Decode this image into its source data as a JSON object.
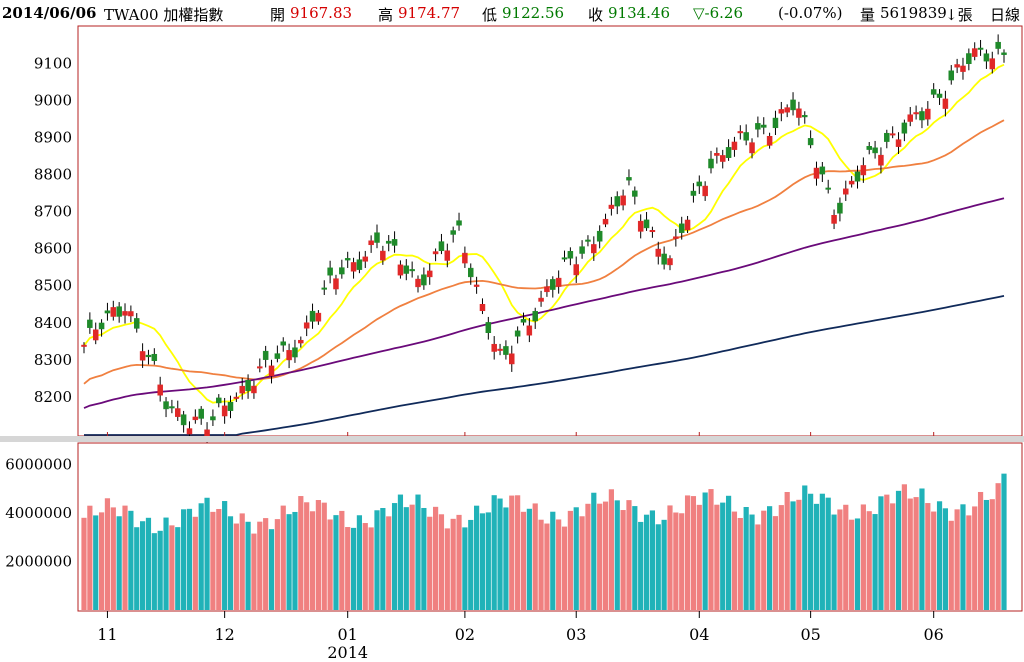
{
  "header": {
    "date": "2014/06/06",
    "symbol": "TWA00 加權指數",
    "open_label": "開",
    "open_value": "9167.83",
    "high_label": "高",
    "high_value": "9174.77",
    "low_label": "低",
    "low_value": "9122.56",
    "close_label": "收",
    "close_value": "9134.46",
    "change": "▽-6.26",
    "change_pct": "(-0.07%)",
    "volume_label": "量",
    "volume_value": "5619839",
    "volume_unit": "↓張",
    "period": "日線"
  },
  "colors": {
    "border": "#b52020",
    "up_candle": "#e02828",
    "down_candle": "#1f8a2a",
    "vol_up": "#f08080",
    "vol_down": "#20b2b8",
    "ma_yellow": "#ffff00",
    "ma_orange": "#f08040",
    "ma_purple": "#6a0a7a",
    "ma_navy": "#102a5a"
  },
  "chart_data": [
    {
      "type": "candlestick",
      "title": "TWA00 加權指數 日線",
      "ylim": [
        8100,
        9190
      ],
      "yticks": [
        8200,
        8300,
        8400,
        8500,
        8600,
        8700,
        8800,
        8900,
        9000,
        9100
      ],
      "xticks": [
        "11",
        "12",
        "01",
        "02",
        "03",
        "04",
        "05",
        "06"
      ],
      "xtick_sublabel": "2014",
      "approx_close_path": [
        {
          "label": "2013/10 end",
          "close": 8340
        },
        {
          "label": "2013/11 start",
          "close": 8460
        },
        {
          "label": "2013/11 mid",
          "close": 8170
        },
        {
          "label": "2013/11 low",
          "close": 8120
        },
        {
          "label": "2013/12 start",
          "close": 8250
        },
        {
          "label": "2013/12 mid",
          "close": 8330
        },
        {
          "label": "2013/12 end",
          "close": 8520
        },
        {
          "label": "2014/01 start",
          "close": 8620
        },
        {
          "label": "2014/01 mid",
          "close": 8520
        },
        {
          "label": "2014/01 high",
          "close": 8640
        },
        {
          "label": "2014/02 start",
          "close": 8280
        },
        {
          "label": "2014/02 mid",
          "close": 8480
        },
        {
          "label": "2014/03 start",
          "close": 8600
        },
        {
          "label": "2014/03 mid",
          "close": 8760
        },
        {
          "label": "2014/03 low",
          "close": 8560
        },
        {
          "label": "2014/04 start",
          "close": 8840
        },
        {
          "label": "2014/04 mid",
          "close": 8900
        },
        {
          "label": "2014/04 high",
          "close": 8990
        },
        {
          "label": "2014/05 start",
          "close": 8700
        },
        {
          "label": "2014/05 mid",
          "close": 8880
        },
        {
          "label": "2014/05 end",
          "close": 8950
        },
        {
          "label": "2014/06 start",
          "close": 9100
        },
        {
          "label": "2014/06/06",
          "close": 9134.46
        }
      ],
      "moving_averages": [
        {
          "color": "yellow",
          "start": 8330,
          "end": 8980
        },
        {
          "color": "orange",
          "start": 8150,
          "end": 8880
        },
        {
          "color": "purple",
          "start": 8140,
          "end": 8700
        },
        {
          "color": "navy",
          "start": 8000,
          "end": 8420
        }
      ]
    },
    {
      "type": "bar",
      "title": "Volume",
      "ylim": [
        0,
        6800000
      ],
      "yticks": [
        2000000,
        4000000,
        6000000
      ],
      "last_value": 5619839
    }
  ]
}
